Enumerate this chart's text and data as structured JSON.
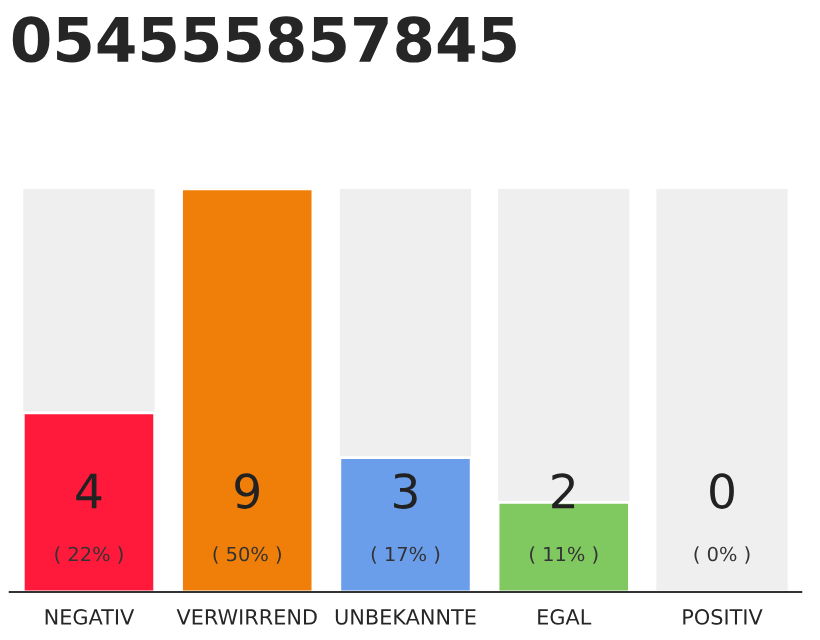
{
  "chart_data": {
    "type": "bar",
    "title": "054555857845",
    "categories": [
      "NEGATIV",
      "VERWIRREND",
      "UNBEKANNTE",
      "EGAL",
      "POSITIV"
    ],
    "values": [
      4,
      9,
      3,
      2,
      0
    ],
    "colors": [
      "#ff1a3c",
      "#f07f09",
      "#6b9eea",
      "#80c860",
      null
    ],
    "value_labels": [
      "4\n( 22% )",
      "9\n( 50% )",
      "3\n( 17% )",
      "2\n( 11% )",
      "0\n( 0% )"
    ],
    "grid": false,
    "legend": false
  }
}
